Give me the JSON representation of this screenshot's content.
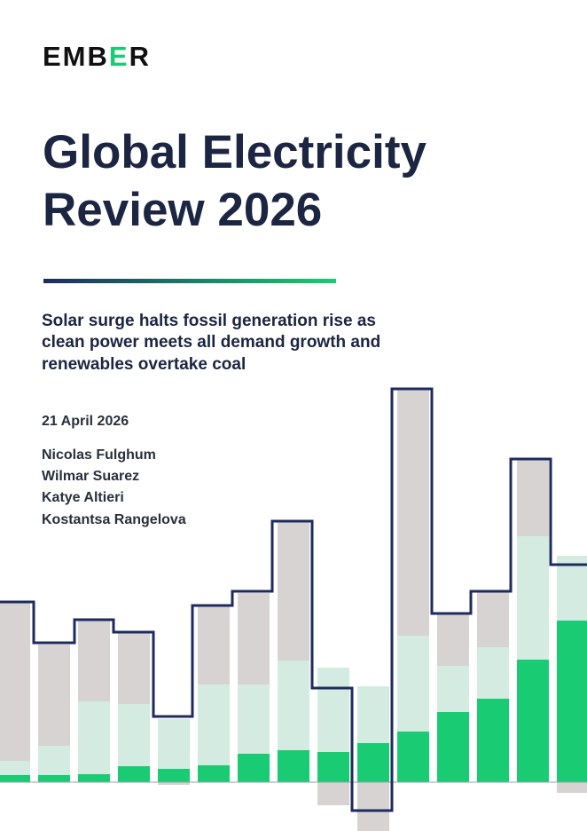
{
  "logo": [
    "EMB",
    "E",
    "R"
  ],
  "title": [
    "Global Electricity",
    "Review 2026"
  ],
  "subtitle": [
    "Solar surge halts fossil generation rise as",
    "clean power meets all demand growth and",
    "renewables overtake coal"
  ],
  "date": "21 April 2026",
  "authors": [
    "Nicolas Fulghum",
    "Wilmar Suarez",
    "Katye Altieri",
    "Kostantsa Rangelova"
  ]
}
